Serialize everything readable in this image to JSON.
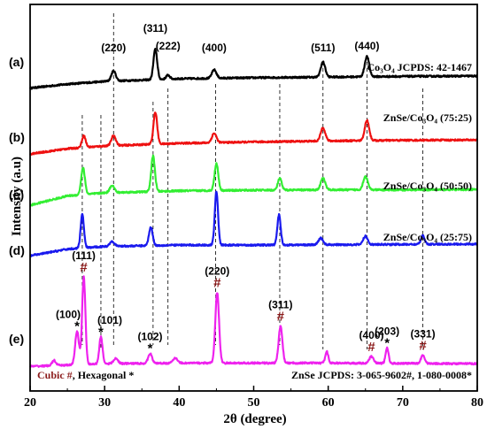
{
  "chart_data": {
    "type": "line",
    "xlabel": "2θ (degree)",
    "ylabel": "Intensity (a.u)",
    "xlim": [
      20,
      80
    ],
    "x_ticks": [
      20,
      30,
      40,
      50,
      60,
      70,
      80
    ],
    "grid": false,
    "series": [
      {
        "letter": "(a)",
        "name": "Co₃O₄ JCPDS: 42-1467",
        "color": "#000000",
        "baseline": [
          [
            20,
            0.22
          ],
          [
            25,
            0.34
          ],
          [
            30,
            0.42
          ],
          [
            40,
            0.5
          ],
          [
            50,
            0.53
          ],
          [
            60,
            0.55
          ],
          [
            70,
            0.57
          ],
          [
            80,
            0.58
          ]
        ],
        "peaks": [
          [
            31.2,
            0.3,
            0.3
          ],
          [
            36.8,
            0.9,
            0.25
          ],
          [
            38.5,
            0.12,
            0.25
          ],
          [
            44.7,
            0.25,
            0.3
          ],
          [
            59.3,
            0.45,
            0.3
          ],
          [
            65.2,
            0.6,
            0.3
          ]
        ]
      },
      {
        "letter": "(b)",
        "name": "ZnSe/Co₃O₄ (75:25)",
        "color": "#ee1111",
        "baseline": [
          [
            20,
            0.18
          ],
          [
            25,
            0.34
          ],
          [
            30,
            0.42
          ],
          [
            40,
            0.5
          ],
          [
            50,
            0.54
          ],
          [
            60,
            0.57
          ],
          [
            70,
            0.59
          ],
          [
            80,
            0.6
          ]
        ],
        "peaks": [
          [
            27.2,
            0.35,
            0.25
          ],
          [
            31.2,
            0.3,
            0.3
          ],
          [
            36.8,
            0.95,
            0.25
          ],
          [
            44.7,
            0.28,
            0.3
          ],
          [
            59.3,
            0.4,
            0.3
          ],
          [
            65.2,
            0.6,
            0.3
          ]
        ]
      },
      {
        "letter": "(c)",
        "name": "ZnSe/Co₃O₄ (50:50)",
        "color": "#33ee33",
        "baseline": [
          [
            20,
            0.05
          ],
          [
            25,
            0.33
          ],
          [
            30,
            0.42
          ],
          [
            40,
            0.48
          ],
          [
            50,
            0.5
          ],
          [
            60,
            0.51
          ],
          [
            70,
            0.51
          ],
          [
            80,
            0.52
          ]
        ],
        "peaks": [
          [
            27.1,
            0.8,
            0.25
          ],
          [
            31.0,
            0.22,
            0.3
          ],
          [
            36.5,
            1.05,
            0.25
          ],
          [
            45.0,
            0.8,
            0.25
          ],
          [
            53.5,
            0.35,
            0.25
          ],
          [
            59.3,
            0.35,
            0.3
          ],
          [
            65.0,
            0.4,
            0.3
          ]
        ]
      },
      {
        "letter": "(d)",
        "name": "ZnSe/Co₃O₄ (25:75)",
        "color": "#1a1aee",
        "baseline": [
          [
            20,
            0.02
          ],
          [
            25,
            0.22
          ],
          [
            30,
            0.3
          ],
          [
            40,
            0.34
          ],
          [
            50,
            0.34
          ],
          [
            60,
            0.35
          ],
          [
            70,
            0.36
          ],
          [
            80,
            0.37
          ]
        ],
        "peaks": [
          [
            27.0,
            1.0,
            0.22
          ],
          [
            31.0,
            0.15,
            0.3
          ],
          [
            36.2,
            0.55,
            0.25
          ],
          [
            45.0,
            1.6,
            0.22
          ],
          [
            53.4,
            0.9,
            0.22
          ],
          [
            59.0,
            0.2,
            0.3
          ],
          [
            65.0,
            0.25,
            0.3
          ],
          [
            72.7,
            0.25,
            0.25
          ]
        ]
      },
      {
        "letter": "(e)",
        "name": "ZnSe JCPDS: 3-065-9602#, 1-080-0008*",
        "color": "#ee22ee",
        "baseline": [
          [
            20,
            0.02
          ],
          [
            30,
            0.1
          ],
          [
            40,
            0.12
          ],
          [
            50,
            0.12
          ],
          [
            60,
            0.12
          ],
          [
            70,
            0.11
          ],
          [
            80,
            0.1
          ]
        ],
        "peaks": [
          [
            23.2,
            0.15,
            0.25
          ],
          [
            26.3,
            1.0,
            0.25
          ],
          [
            27.2,
            2.6,
            0.22
          ],
          [
            29.5,
            0.8,
            0.22
          ],
          [
            31.5,
            0.15,
            0.3
          ],
          [
            36.1,
            0.3,
            0.25
          ],
          [
            39.5,
            0.15,
            0.3
          ],
          [
            45.1,
            2.1,
            0.25
          ],
          [
            53.6,
            1.1,
            0.25
          ],
          [
            59.8,
            0.35,
            0.2
          ],
          [
            65.8,
            0.2,
            0.3
          ],
          [
            67.9,
            0.45,
            0.2
          ],
          [
            72.7,
            0.25,
            0.25
          ]
        ]
      }
    ],
    "co3o4_peak_labels": [
      {
        "hkl": "(220)",
        "x": 31.2
      },
      {
        "hkl": "(311)",
        "x": 36.8
      },
      {
        "hkl": "(222)",
        "x": 38.5
      },
      {
        "hkl": "(400)",
        "x": 44.7
      },
      {
        "hkl": "(511)",
        "x": 59.3
      },
      {
        "hkl": "(440)",
        "x": 65.2
      }
    ],
    "reference_lines_x": [
      27.0,
      29.5,
      31.2,
      36.5,
      38.5,
      44.9,
      53.5,
      59.3,
      65.2,
      72.7
    ],
    "znse_peak_labels": [
      {
        "hkl": "(100)",
        "x": 26.3,
        "marker": "*"
      },
      {
        "hkl": "(111)",
        "x": 27.2,
        "marker": "#"
      },
      {
        "hkl": "(101)",
        "x": 29.5,
        "marker": "*"
      },
      {
        "hkl": "(102)",
        "x": 36.1,
        "marker": "*"
      },
      {
        "hkl": "(220)",
        "x": 45.1,
        "marker": "#"
      },
      {
        "hkl": "(311)",
        "x": 53.6,
        "marker": "#"
      },
      {
        "hkl": "(400)",
        "x": 65.8,
        "marker": "#"
      },
      {
        "hkl": "(203)",
        "x": 67.9,
        "marker": "*"
      },
      {
        "hkl": "(331)",
        "x": 72.7,
        "marker": "#"
      }
    ],
    "legend_note": {
      "cubic": "Cubic #",
      "hexagonal": ", Hexagonal *"
    }
  }
}
